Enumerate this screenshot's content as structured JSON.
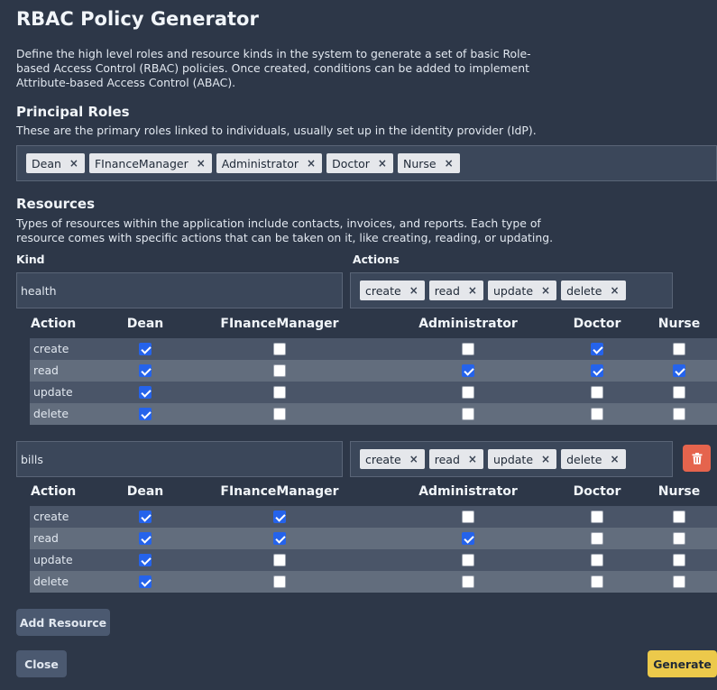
{
  "title": "RBAC Policy Generator",
  "intro": "Define the high level roles and resource kinds in the system to generate a set of basic Role-based Access Control (RBAC) policies. Once created, conditions can be added to implement Attribute-based Access Control (ABAC).",
  "principal": {
    "heading": "Principal Roles",
    "description": "These are the primary roles linked to individuals, usually set up in the identity provider (IdP).",
    "roles": [
      "Dean",
      "FInanceManager",
      "Administrator",
      "Doctor",
      "Nurse"
    ]
  },
  "resources": {
    "heading": "Resources",
    "description": "Types of resources within the application include contacts, invoices, and reports. Each type of resource comes with specific actions that can be taken on it, like creating, reading, or updating.",
    "kind_label": "Kind",
    "actions_label": "Actions",
    "action_column_header": "Action",
    "remove_symbol": "×",
    "items": [
      {
        "kind": "health",
        "actions": [
          "create",
          "read",
          "update",
          "delete"
        ],
        "matrix": [
          {
            "action": "create",
            "checks": [
              true,
              false,
              false,
              true,
              false
            ]
          },
          {
            "action": "read",
            "checks": [
              true,
              false,
              true,
              true,
              true
            ]
          },
          {
            "action": "update",
            "checks": [
              true,
              false,
              false,
              false,
              false
            ]
          },
          {
            "action": "delete",
            "checks": [
              true,
              false,
              false,
              false,
              false
            ]
          }
        ]
      },
      {
        "kind": "bills",
        "actions": [
          "create",
          "read",
          "update",
          "delete"
        ],
        "matrix": [
          {
            "action": "create",
            "checks": [
              true,
              true,
              false,
              false,
              false
            ]
          },
          {
            "action": "read",
            "checks": [
              true,
              true,
              true,
              false,
              false
            ]
          },
          {
            "action": "update",
            "checks": [
              true,
              false,
              false,
              false,
              false
            ]
          },
          {
            "action": "delete",
            "checks": [
              true,
              false,
              false,
              false,
              false
            ]
          }
        ]
      }
    ]
  },
  "buttons": {
    "add_resource": "Add Resource",
    "close": "Close",
    "generate": "Generate"
  },
  "icons": {
    "delete_resource": "trash-icon"
  },
  "colors": {
    "background": "#2d3748",
    "checkbox_checked": "#2563eb",
    "generate_button": "#ecc94b",
    "delete_button": "#e5644d"
  }
}
